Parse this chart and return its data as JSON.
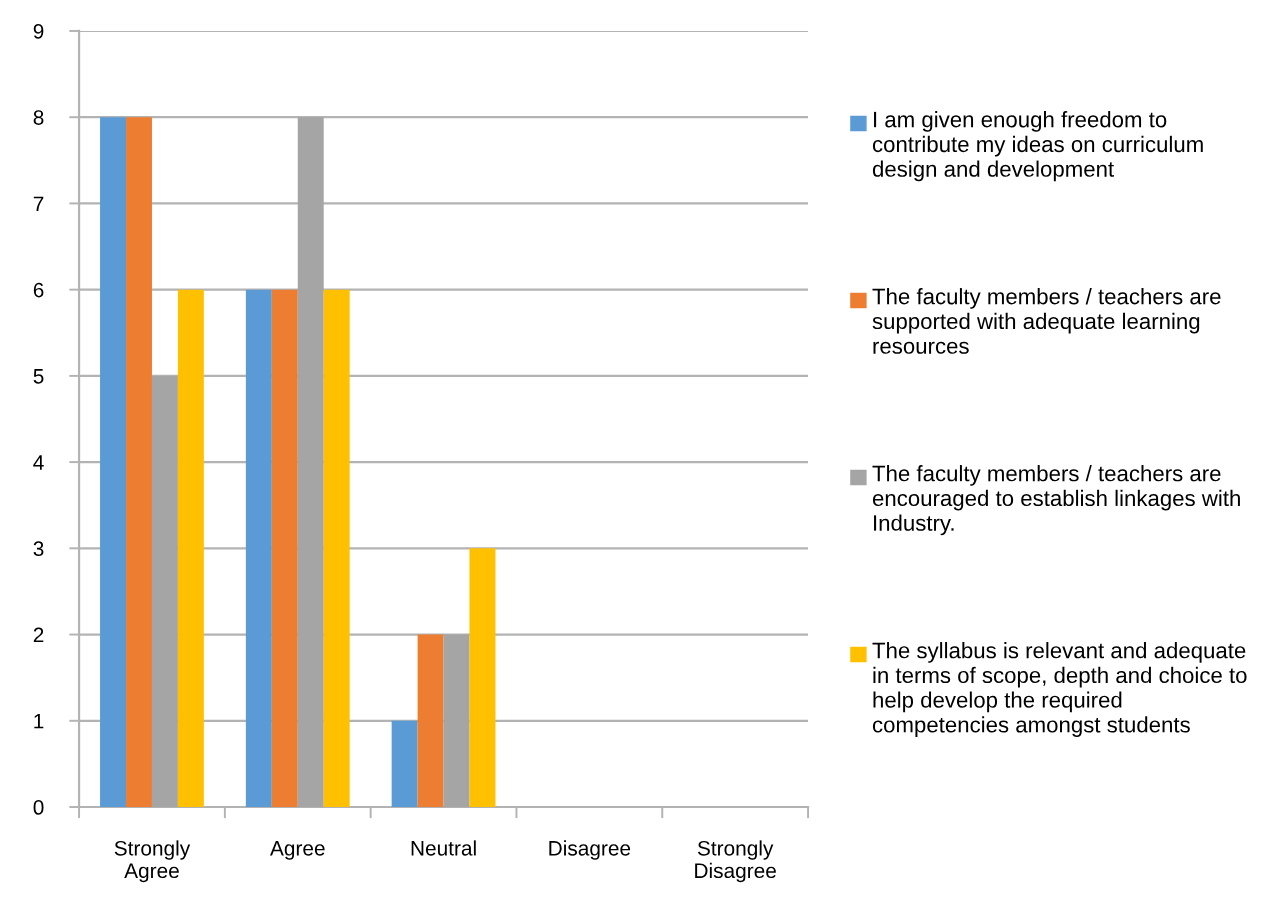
{
  "chart_data": {
    "type": "bar",
    "categories": [
      "Strongly Agree",
      "Agree",
      "Neutral",
      "Disagree",
      "Strongly Disagree"
    ],
    "series": [
      {
        "name": "I am given enough freedom to contribute my ideas on curriculum design and development",
        "color": "#5b9bd5",
        "values": [
          8,
          6,
          1,
          0,
          0
        ]
      },
      {
        "name": "The faculty members / teachers are supported with adequate learning resources",
        "color": "#ed7d31",
        "values": [
          8,
          6,
          2,
          0,
          0
        ]
      },
      {
        "name": "The faculty members / teachers are encouraged to establish linkages with Industry.",
        "color": "#a5a5a5",
        "values": [
          5,
          8,
          2,
          0,
          0
        ]
      },
      {
        "name": "The syllabus is relevant and adequate in terms of scope, depth and choice to help develop the required competencies amongst students",
        "color": "#ffc000",
        "values": [
          6,
          6,
          3,
          0,
          0
        ]
      }
    ],
    "ylim": [
      0,
      9
    ],
    "yticks": [
      0,
      1,
      2,
      3,
      4,
      5,
      6,
      7,
      8,
      9
    ],
    "grid": "y",
    "legend": "right"
  }
}
